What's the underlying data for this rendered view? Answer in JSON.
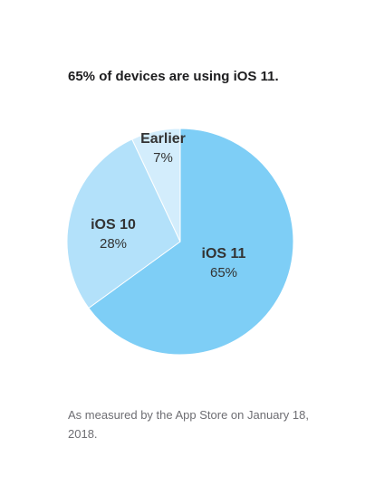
{
  "chart_data": {
    "type": "pie",
    "title": "65% of devices are using iOS 11.",
    "slices": [
      {
        "name": "iOS 11",
        "value": 65,
        "label": "65%",
        "color": "#7ecef6"
      },
      {
        "name": "iOS 10",
        "value": 28,
        "label": "28%",
        "color": "#b3e1fa"
      },
      {
        "name": "Earlier",
        "value": 7,
        "label": "7%",
        "color": "#d3edfc"
      }
    ]
  },
  "footnote": "As measured by the App Store on January 18, 2018."
}
